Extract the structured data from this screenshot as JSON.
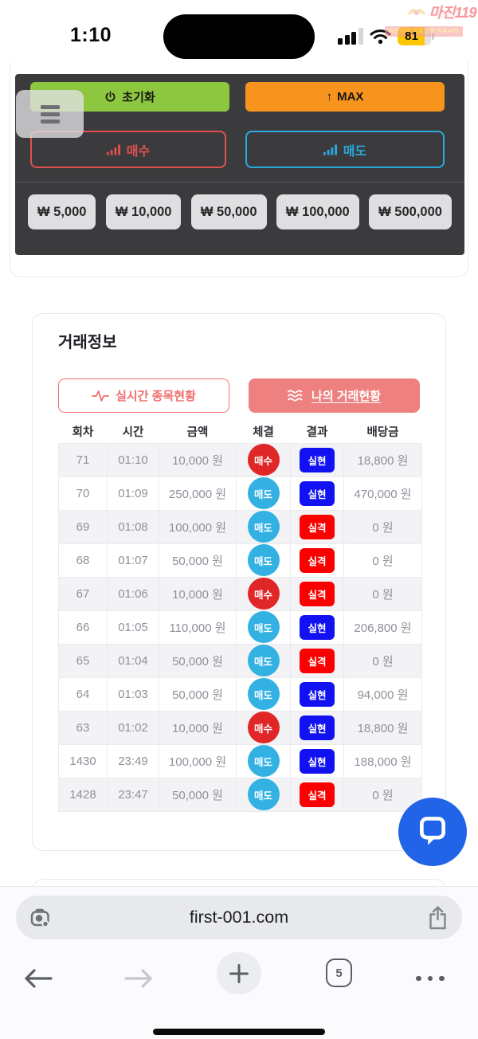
{
  "status_bar": {
    "time": "1:10",
    "battery_level": "81"
  },
  "watermark": {
    "title": "마진119",
    "subtitle": "마진거래 검증전문 커뮤니티"
  },
  "trade_panel": {
    "reset_label": "초기화",
    "max_icon": "↑",
    "max_label": "MAX",
    "buy_label": "매수",
    "sell_label": "매도",
    "amounts": [
      "₩ 5,000",
      "₩ 10,000",
      "₩ 50,000",
      "₩ 100,000",
      "₩ 500,000"
    ]
  },
  "trade_info": {
    "title": "거래정보",
    "tabs": [
      {
        "label": "실시간 종목현황"
      },
      {
        "label": "나의 거래현황"
      }
    ],
    "table": {
      "headers": [
        "회차",
        "시간",
        "금액",
        "체결",
        "결과",
        "배당금"
      ],
      "rows": [
        {
          "round": "71",
          "time": "01:10",
          "amount": "10,000 원",
          "trade": "매수",
          "trade_type": "buy",
          "result": "실현",
          "result_type": "win",
          "payout": "18,800 원"
        },
        {
          "round": "70",
          "time": "01:09",
          "amount": "250,000 원",
          "trade": "매도",
          "trade_type": "sell",
          "result": "실현",
          "result_type": "win",
          "payout": "470,000 원"
        },
        {
          "round": "69",
          "time": "01:08",
          "amount": "100,000 원",
          "trade": "매도",
          "trade_type": "sell",
          "result": "실격",
          "result_type": "lose",
          "payout": "0 원"
        },
        {
          "round": "68",
          "time": "01:07",
          "amount": "50,000 원",
          "trade": "매도",
          "trade_type": "sell",
          "result": "실격",
          "result_type": "lose",
          "payout": "0 원"
        },
        {
          "round": "67",
          "time": "01:06",
          "amount": "10,000 원",
          "trade": "매수",
          "trade_type": "buy",
          "result": "실격",
          "result_type": "lose",
          "payout": "0 원"
        },
        {
          "round": "66",
          "time": "01:05",
          "amount": "110,000 원",
          "trade": "매도",
          "trade_type": "sell",
          "result": "실현",
          "result_type": "win",
          "payout": "206,800 원"
        },
        {
          "round": "65",
          "time": "01:04",
          "amount": "50,000 원",
          "trade": "매도",
          "trade_type": "sell",
          "result": "실격",
          "result_type": "lose",
          "payout": "0 원"
        },
        {
          "round": "64",
          "time": "01:03",
          "amount": "50,000 원",
          "trade": "매도",
          "trade_type": "sell",
          "result": "실현",
          "result_type": "win",
          "payout": "94,000 원"
        },
        {
          "round": "63",
          "time": "01:02",
          "amount": "10,000 원",
          "trade": "매수",
          "trade_type": "buy",
          "result": "실현",
          "result_type": "win",
          "payout": "18,800 원"
        },
        {
          "round": "1430",
          "time": "23:49",
          "amount": "100,000 원",
          "trade": "매도",
          "trade_type": "sell",
          "result": "실현",
          "result_type": "win",
          "payout": "188,000 원"
        },
        {
          "round": "1428",
          "time": "23:47",
          "amount": "50,000 원",
          "trade": "매도",
          "trade_type": "sell",
          "result": "실격",
          "result_type": "lose",
          "payout": "0 원"
        }
      ]
    }
  },
  "browser": {
    "url": "first-001.com",
    "tab_count": "5"
  },
  "colors": {
    "green": "#8dc63f",
    "orange": "#f7941e",
    "buy_red": "#e0504e",
    "sell_blue": "#2ba9e0",
    "buy_badge": "#e02627",
    "sell_badge": "#33b1e3",
    "win_blue": "#1111f2",
    "lose_red": "#fa0000",
    "tab_red": "#f16e6e",
    "tab_pink": "#ef8080",
    "chat_blue": "#2264e8",
    "battery_yellow": "#fdc700"
  }
}
